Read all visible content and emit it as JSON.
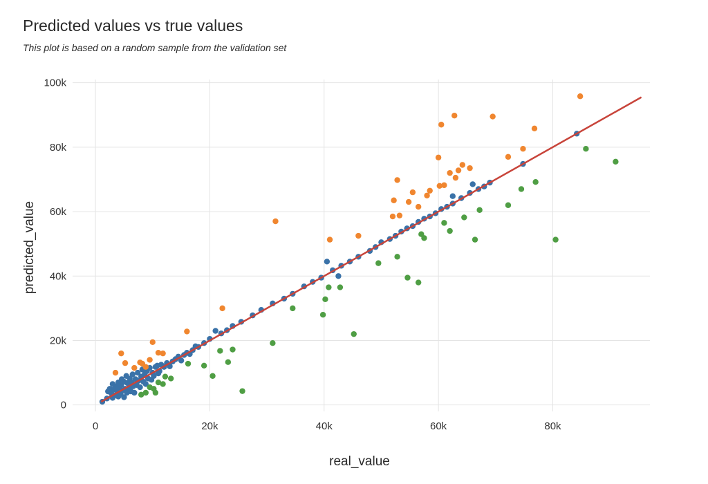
{
  "chart_data": {
    "type": "scatter",
    "title": "Predicted values vs true values",
    "subtitle": "This plot is based on a random sample from the validation set",
    "xlabel": "real_value",
    "ylabel": "predicted_value",
    "xlim": [
      -4000,
      97000
    ],
    "ylim": [
      -2000,
      101000
    ],
    "x_ticks": [
      0,
      20000,
      40000,
      60000,
      80000
    ],
    "x_tick_labels": [
      "0",
      "20k",
      "40k",
      "60k",
      "80k"
    ],
    "y_ticks": [
      0,
      20000,
      40000,
      60000,
      80000,
      100000
    ],
    "y_tick_labels": [
      "0",
      "20k",
      "40k",
      "60k",
      "80k",
      "100k"
    ],
    "grid": true,
    "colors": {
      "underestimated": "#f0862f",
      "overestimated": "#4f9e44",
      "accurate": "#3a72a8",
      "fit_line": "#c8443a",
      "grid": "#e4e4e4"
    },
    "fit_line": {
      "x": [
        1000,
        95500
      ],
      "y": [
        1000,
        95500
      ]
    },
    "series": [
      {
        "color": "#3a72a8",
        "points": [
          [
            1200,
            1000
          ],
          [
            2000,
            2000
          ],
          [
            2200,
            4200
          ],
          [
            2500,
            5000
          ],
          [
            2800,
            3500
          ],
          [
            3000,
            2200
          ],
          [
            3000,
            6500
          ],
          [
            3200,
            4800
          ],
          [
            3500,
            3000
          ],
          [
            3600,
            5800
          ],
          [
            3800,
            4200
          ],
          [
            4000,
            7000
          ],
          [
            4000,
            2600
          ],
          [
            4200,
            5500
          ],
          [
            4400,
            3500
          ],
          [
            4500,
            6200
          ],
          [
            4600,
            8000
          ],
          [
            4800,
            4500
          ],
          [
            5000,
            2400
          ],
          [
            5000,
            7200
          ],
          [
            5200,
            5000
          ],
          [
            5400,
            9000
          ],
          [
            5500,
            3800
          ],
          [
            5600,
            6800
          ],
          [
            5800,
            5200
          ],
          [
            6000,
            8200
          ],
          [
            6200,
            4200
          ],
          [
            6300,
            7000
          ],
          [
            6500,
            9500
          ],
          [
            6600,
            5800
          ],
          [
            6800,
            3800
          ],
          [
            7000,
            8000
          ],
          [
            7200,
            6200
          ],
          [
            7400,
            10000
          ],
          [
            7500,
            7500
          ],
          [
            7800,
            5500
          ],
          [
            8000,
            8800
          ],
          [
            8200,
            11000
          ],
          [
            8400,
            7200
          ],
          [
            8600,
            9500
          ],
          [
            8800,
            6500
          ],
          [
            9000,
            10500
          ],
          [
            9200,
            8200
          ],
          [
            9500,
            11500
          ],
          [
            9800,
            7800
          ],
          [
            10000,
            10000
          ],
          [
            10200,
            9000
          ],
          [
            10500,
            11800
          ],
          [
            10800,
            12200
          ],
          [
            11000,
            9800
          ],
          [
            11200,
            10500
          ],
          [
            11500,
            12500
          ],
          [
            12000,
            11800
          ],
          [
            12500,
            13000
          ],
          [
            13000,
            12000
          ],
          [
            13500,
            13500
          ],
          [
            14000,
            14200
          ],
          [
            14500,
            15000
          ],
          [
            15000,
            13800
          ],
          [
            15500,
            15500
          ],
          [
            16000,
            16200
          ],
          [
            16500,
            15800
          ],
          [
            17000,
            17000
          ],
          [
            17500,
            18200
          ],
          [
            18000,
            18000
          ],
          [
            19000,
            19200
          ],
          [
            20000,
            20500
          ],
          [
            21000,
            23000
          ],
          [
            22000,
            22200
          ],
          [
            23000,
            23200
          ],
          [
            24000,
            24500
          ],
          [
            25500,
            25800
          ],
          [
            27500,
            27800
          ],
          [
            29000,
            29500
          ],
          [
            31000,
            31500
          ],
          [
            33000,
            33000
          ],
          [
            34500,
            34500
          ],
          [
            36500,
            36800
          ],
          [
            38000,
            38200
          ],
          [
            39500,
            39500
          ],
          [
            40500,
            44500
          ],
          [
            41500,
            41800
          ],
          [
            42500,
            40000
          ],
          [
            43000,
            43200
          ],
          [
            44500,
            44500
          ],
          [
            46000,
            46000
          ],
          [
            48000,
            47800
          ],
          [
            49000,
            49000
          ],
          [
            50000,
            50500
          ],
          [
            51500,
            51500
          ],
          [
            52500,
            52500
          ],
          [
            53500,
            53800
          ],
          [
            54500,
            54800
          ],
          [
            55500,
            55500
          ],
          [
            56500,
            56800
          ],
          [
            57500,
            57800
          ],
          [
            58500,
            58500
          ],
          [
            59500,
            59500
          ],
          [
            60500,
            60800
          ],
          [
            61500,
            61500
          ],
          [
            62500,
            62500
          ],
          [
            62500,
            64800
          ],
          [
            64000,
            64200
          ],
          [
            65500,
            65800
          ],
          [
            66000,
            68500
          ],
          [
            67000,
            67000
          ],
          [
            68000,
            67800
          ],
          [
            69000,
            69000
          ],
          [
            74800,
            74800
          ],
          [
            84200,
            84200
          ]
        ]
      },
      {
        "color": "#f0862f",
        "points": [
          [
            3500,
            10000
          ],
          [
            4500,
            16000
          ],
          [
            5200,
            13000
          ],
          [
            6800,
            11500
          ],
          [
            7800,
            13200
          ],
          [
            8200,
            12800
          ],
          [
            8800,
            11800
          ],
          [
            9500,
            14000
          ],
          [
            10000,
            19500
          ],
          [
            11000,
            16200
          ],
          [
            11800,
            16000
          ],
          [
            16000,
            22800
          ],
          [
            22200,
            30000
          ],
          [
            31500,
            57000
          ],
          [
            41000,
            51300
          ],
          [
            46000,
            52500
          ],
          [
            52000,
            58500
          ],
          [
            52200,
            63500
          ],
          [
            52800,
            69800
          ],
          [
            53200,
            58800
          ],
          [
            54800,
            63000
          ],
          [
            55500,
            66000
          ],
          [
            56500,
            61500
          ],
          [
            58000,
            65000
          ],
          [
            58500,
            66500
          ],
          [
            60000,
            76800
          ],
          [
            60200,
            68000
          ],
          [
            60500,
            87000
          ],
          [
            61000,
            68200
          ],
          [
            62000,
            72000
          ],
          [
            62800,
            89800
          ],
          [
            63000,
            70500
          ],
          [
            63500,
            72800
          ],
          [
            64200,
            74500
          ],
          [
            65500,
            73500
          ],
          [
            69500,
            89500
          ],
          [
            72200,
            77000
          ],
          [
            74800,
            79500
          ],
          [
            76800,
            85800
          ],
          [
            84800,
            95800
          ]
        ]
      },
      {
        "color": "#4f9e44",
        "points": [
          [
            8000,
            3200
          ],
          [
            8800,
            3800
          ],
          [
            9500,
            5500
          ],
          [
            10200,
            5000
          ],
          [
            10500,
            3800
          ],
          [
            11000,
            7000
          ],
          [
            11800,
            6500
          ],
          [
            12200,
            8800
          ],
          [
            13200,
            8200
          ],
          [
            16200,
            12800
          ],
          [
            19000,
            12200
          ],
          [
            20500,
            9000
          ],
          [
            21800,
            16800
          ],
          [
            23200,
            13300
          ],
          [
            24000,
            17200
          ],
          [
            25700,
            4300
          ],
          [
            31000,
            19200
          ],
          [
            34500,
            30000
          ],
          [
            39800,
            28000
          ],
          [
            40200,
            32800
          ],
          [
            40800,
            36500
          ],
          [
            42800,
            36500
          ],
          [
            45200,
            22000
          ],
          [
            49500,
            44000
          ],
          [
            52800,
            46000
          ],
          [
            54600,
            39500
          ],
          [
            56500,
            38000
          ],
          [
            57000,
            53000
          ],
          [
            57500,
            51800
          ],
          [
            61000,
            56500
          ],
          [
            62000,
            54000
          ],
          [
            64500,
            58200
          ],
          [
            66400,
            51300
          ],
          [
            67200,
            60500
          ],
          [
            72200,
            62000
          ],
          [
            74500,
            67000
          ],
          [
            77000,
            69200
          ],
          [
            80500,
            51300
          ],
          [
            85800,
            79500
          ],
          [
            91000,
            75500
          ]
        ]
      }
    ]
  }
}
